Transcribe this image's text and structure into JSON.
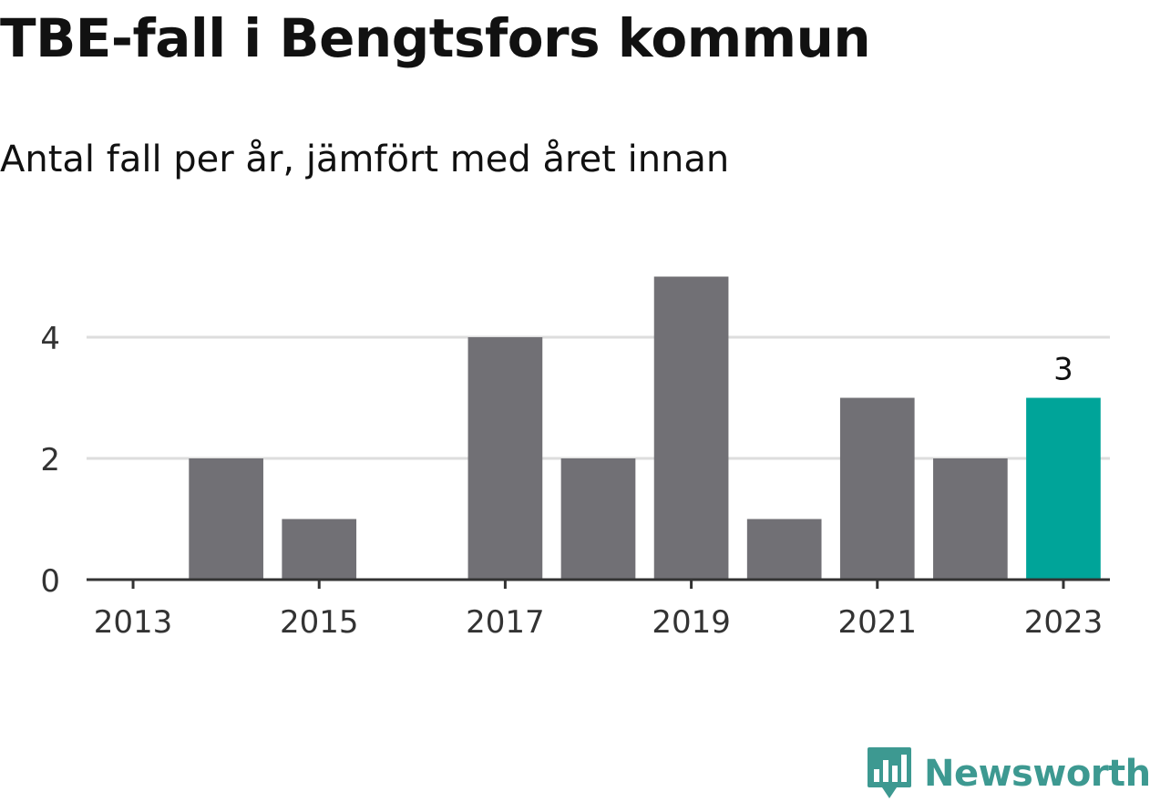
{
  "title": "TBE-fall i Bengtsfors kommun",
  "subtitle": "Antal fall per år, jämfört med året innan",
  "brand": {
    "name": "Newsworthy",
    "color": "#3d9991",
    "icon": "newsworthy-logo-icon"
  },
  "colors": {
    "bar": "#717075",
    "highlight": "#00a499",
    "grid": "#dddddd",
    "axis": "#333333"
  },
  "chart_data": {
    "type": "bar",
    "x": [
      2013,
      2014,
      2015,
      2016,
      2017,
      2018,
      2019,
      2020,
      2021,
      2022,
      2023
    ],
    "values": [
      0,
      2,
      1,
      0,
      4,
      2,
      5,
      1,
      3,
      2,
      3
    ],
    "highlight_index": 10,
    "data_labels": [
      {
        "x": 2023,
        "label": "3"
      }
    ],
    "xticks": [
      "2013",
      "2015",
      "2017",
      "2019",
      "2021",
      "2023"
    ],
    "yticks": [
      "0",
      "2",
      "4"
    ],
    "ylim": [
      0,
      5
    ],
    "grid": true,
    "xlabel": "",
    "ylabel": ""
  }
}
